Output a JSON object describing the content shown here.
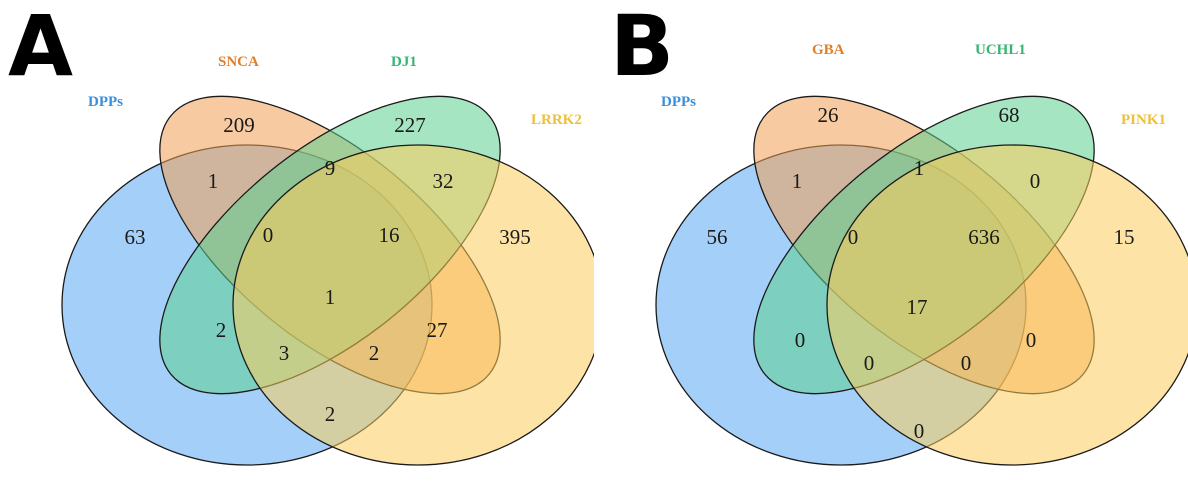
{
  "colors": {
    "set1": "#5aa8f2",
    "set2": "#f39e53",
    "set3": "#5cd08f",
    "set4": "#fbcd5c",
    "label1": "#3a8fdc",
    "label2": "#e07f2a",
    "label3": "#34b570",
    "label4": "#eebf3a"
  },
  "panels": [
    {
      "letter": "A",
      "sets": [
        "DPPs",
        "SNCA",
        "DJ1",
        "LRRK2"
      ],
      "regions": {
        "only1": "63",
        "only2": "209",
        "only3": "227",
        "only4": "395",
        "s12": "1",
        "s23": "9",
        "s34": "32",
        "s123": "0",
        "s234": "16",
        "s1234": "1",
        "s13": "2",
        "s24": "27",
        "s134": "3",
        "s124": "2",
        "s14": "2"
      }
    },
    {
      "letter": "B",
      "sets": [
        "DPPs",
        "GBA",
        "UCHL1",
        "PINK1"
      ],
      "regions": {
        "only1": "56",
        "only2": "26",
        "only3": "68",
        "only4": "15",
        "s12": "1",
        "s23": "1",
        "s34": "0",
        "s123": "0",
        "s234": "636",
        "s1234": "17",
        "s13": "0",
        "s24": "0",
        "s134": "0",
        "s124": "0",
        "s14": "0"
      }
    }
  ]
}
